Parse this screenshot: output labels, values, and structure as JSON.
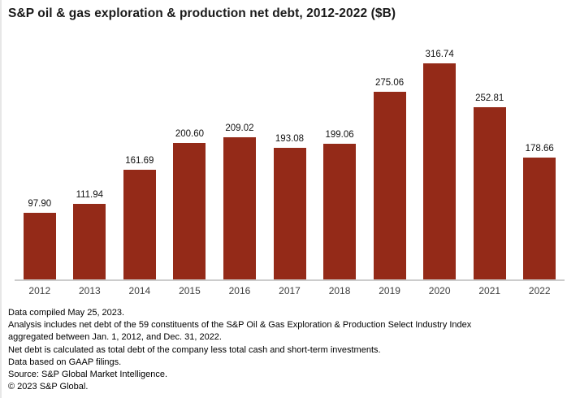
{
  "chart_data": {
    "type": "bar",
    "title": "S&P oil & gas exploration & production net debt, 2012-2022 ($B)",
    "categories": [
      "2012",
      "2013",
      "2014",
      "2015",
      "2016",
      "2017",
      "2018",
      "2019",
      "2020",
      "2021",
      "2022"
    ],
    "values": [
      97.9,
      111.94,
      161.69,
      200.6,
      209.02,
      193.08,
      199.06,
      275.06,
      316.74,
      252.81,
      178.66
    ],
    "value_labels": [
      "97.90",
      "111.94",
      "161.69",
      "200.60",
      "209.02",
      "193.08",
      "199.06",
      "275.06",
      "316.74",
      "252.81",
      "178.66"
    ],
    "xlabel": "",
    "ylabel": "",
    "ylim": [
      0,
      350
    ],
    "grid": false,
    "legend": "none",
    "bar_color": "#942A18",
    "axis_line_color": "#cccccc"
  },
  "footnotes": {
    "lines": [
      "Data compiled May 25, 2023.",
      "Analysis includes net debt of the 59 constituents of the S&P Oil & Gas Exploration & Production Select Industry Index",
      "aggregated between Jan. 1, 2012, and Dec. 31, 2022.",
      "Net debt is calculated as total debt of the company less total cash and short-term investments.",
      "Data based on GAAP filings.",
      "Source: S&P Global Market Intelligence.",
      "© 2023 S&P Global."
    ]
  }
}
